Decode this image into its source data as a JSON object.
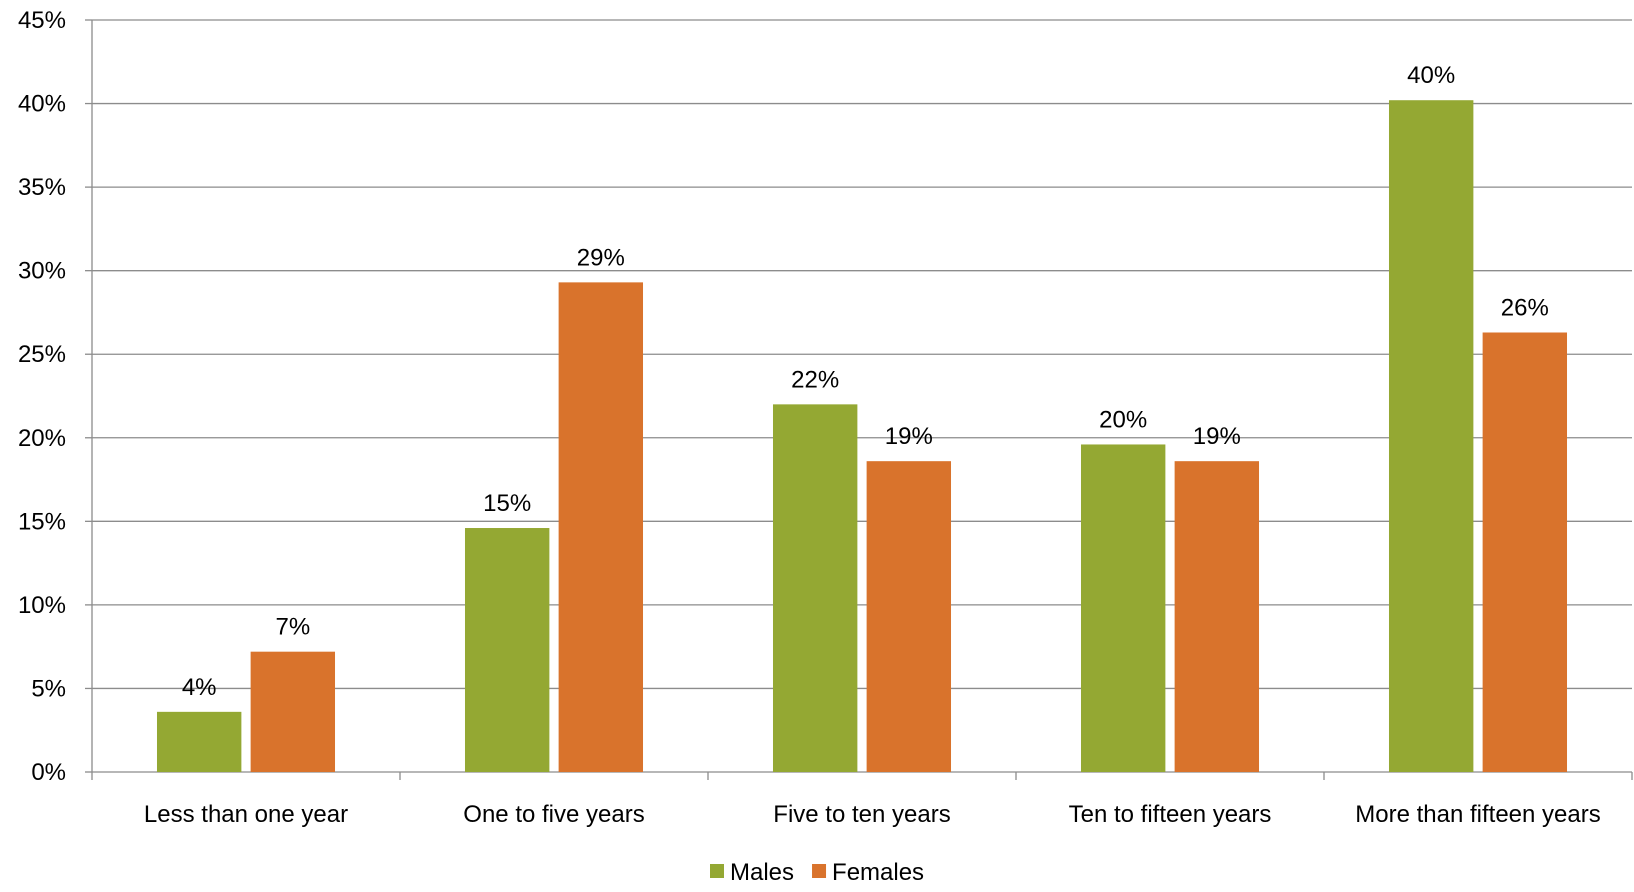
{
  "chart_data": {
    "type": "bar",
    "categories": [
      "Less than one year",
      "One to five years",
      "Five to ten years",
      "Ten to fifteen years",
      "More than fifteen years"
    ],
    "series": [
      {
        "name": "Males",
        "color": "#94A833",
        "values": [
          3.6,
          14.6,
          22.0,
          19.6,
          40.2
        ],
        "labels": [
          "4%",
          "15%",
          "22%",
          "20%",
          "40%"
        ]
      },
      {
        "name": "Females",
        "color": "#D9732C",
        "values": [
          7.2,
          29.3,
          18.6,
          18.6,
          26.3
        ],
        "labels": [
          "7%",
          "29%",
          "19%",
          "19%",
          "26%"
        ]
      }
    ],
    "ylim": [
      0,
      45
    ],
    "yticks": [
      0,
      5,
      10,
      15,
      20,
      25,
      30,
      35,
      40,
      45
    ],
    "ytick_labels": [
      "0%",
      "5%",
      "10%",
      "15%",
      "20%",
      "25%",
      "30%",
      "35%",
      "40%",
      "45%"
    ],
    "title": "",
    "xlabel": "",
    "ylabel": "",
    "grid": true,
    "legend_position": "bottom"
  }
}
